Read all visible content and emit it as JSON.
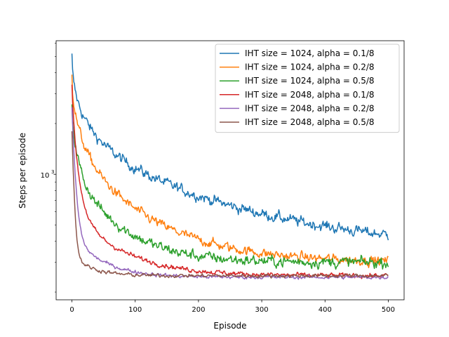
{
  "chart_data": {
    "type": "line",
    "title": "",
    "xlabel": "Episode",
    "ylabel": "Steps per episode",
    "xlim": [
      -25,
      525
    ],
    "ylim": [
      180,
      6200
    ],
    "yscale": "log",
    "xticks": [
      0,
      100,
      200,
      300,
      400,
      500
    ],
    "xtick_labels": [
      "0",
      "100",
      "200",
      "300",
      "400",
      "500"
    ],
    "ytick_label_base": "10",
    "ytick_label_exp": "3",
    "ytick_value": 1000,
    "legend_position": "upper-right",
    "grid": false,
    "series": [
      {
        "name": "IHT size = 1024, alpha = 0.1/8",
        "color": "#1f77b4",
        "start": 5200,
        "plateau": 1020,
        "end": 340,
        "fast": 0.45,
        "knee": 12,
        "tau": 230,
        "noise": 0.045
      },
      {
        "name": "IHT size = 1024, alpha = 0.2/8",
        "color": "#ff7f0e",
        "start": 3900,
        "plateau": 960,
        "end": 300,
        "fast": 0.55,
        "knee": 9,
        "tau": 105,
        "noise": 0.04
      },
      {
        "name": "IHT size = 1024, alpha = 0.5/8",
        "color": "#2ca02c",
        "start": 2600,
        "plateau": 900,
        "end": 300,
        "fast": 0.7,
        "knee": 6,
        "tau": 65,
        "noise": 0.045
      },
      {
        "name": "IHT size = 2048, alpha = 0.1/8",
        "color": "#d62728",
        "start": 3400,
        "plateau": 560,
        "end": 250,
        "fast": 0.75,
        "knee": 5,
        "tau": 70,
        "noise": 0.02
      },
      {
        "name": "IHT size = 2048, alpha = 0.2/8",
        "color": "#9467bd",
        "start": 2500,
        "plateau": 420,
        "end": 245,
        "fast": 0.9,
        "knee": 4,
        "tau": 45,
        "noise": 0.015
      },
      {
        "name": "IHT size = 2048, alpha = 0.5/8",
        "color": "#8c564b",
        "start": 1800,
        "plateau": 330,
        "end": 250,
        "fast": 1.0,
        "knee": 3,
        "tau": 30,
        "noise": 0.015
      }
    ]
  }
}
